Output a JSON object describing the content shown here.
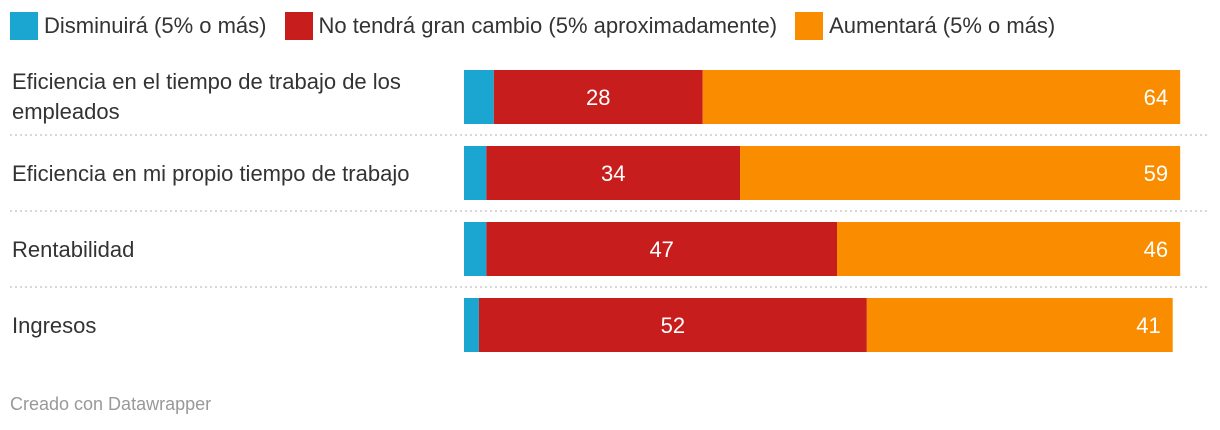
{
  "chart_data": {
    "type": "bar",
    "orientation": "horizontal",
    "stacked": true,
    "legend_position": "top-left",
    "series": [
      {
        "name": "Disminuirá (5% o más)",
        "color": "#1ba5d1",
        "values": [
          4,
          3,
          3,
          2
        ]
      },
      {
        "name": "No tendrá gran cambio (5% aproximadamente)",
        "color": "#c71e1d",
        "values": [
          28,
          34,
          47,
          52
        ]
      },
      {
        "name": "Aumentará (5% o más)",
        "color": "#fa8c00",
        "values": [
          64,
          59,
          46,
          41
        ]
      }
    ],
    "categories": [
      [
        "Eficiencia en el tiempo de trabajo de los",
        "empleados"
      ],
      [
        "Eficiencia en mi propio tiempo de trabajo"
      ],
      [
        "Rentabilidad"
      ],
      [
        "Ingresos"
      ]
    ],
    "labeled_series": [
      1,
      2
    ],
    "xlim": [
      0,
      100
    ]
  },
  "footer": "Creado con Datawrapper"
}
